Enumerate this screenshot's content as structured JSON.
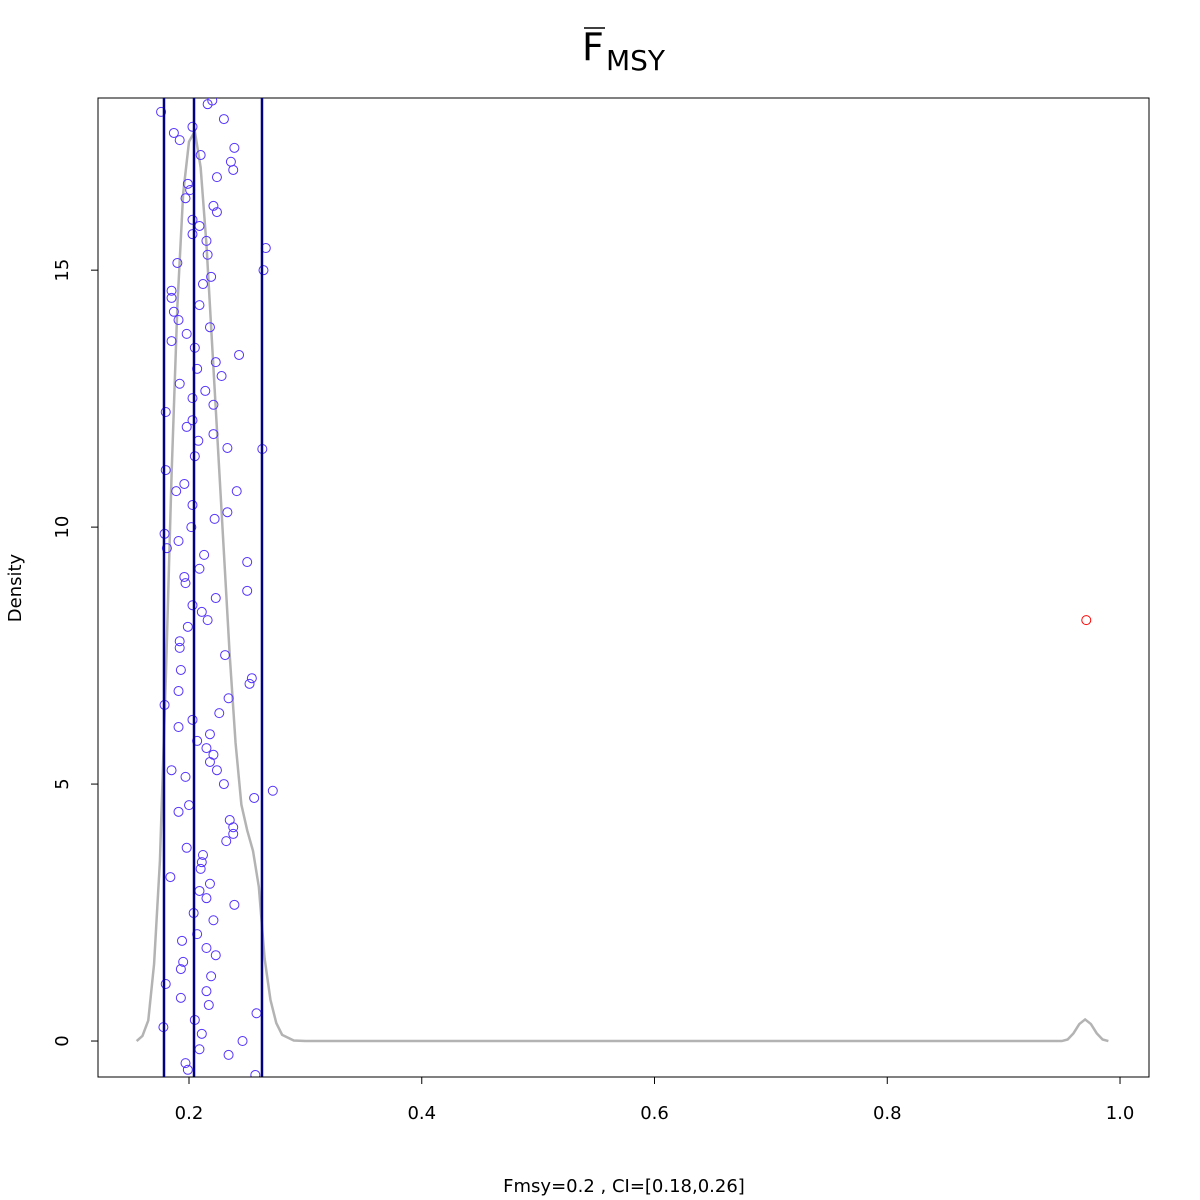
{
  "chart_data": {
    "type": "density",
    "title": {
      "text": "F",
      "subscript": "MSY"
    },
    "xlabel": "Fmsy=0.2 , CI=[0.18,0.26]",
    "ylabel": "Density",
    "xlim": [
      0.1218,
      1.0249
    ],
    "ylim": [
      -0.7,
      18.35
    ],
    "xticks": [
      0.2,
      0.4,
      0.6,
      0.8,
      {
        "value": 1,
        "label": "1.0"
      }
    ],
    "yticks": [
      0,
      5,
      10,
      15
    ],
    "vlines": {
      "color": "#000080",
      "values": [
        0.1785,
        0.2043,
        0.2627
      ]
    },
    "series": [
      {
        "type": "line",
        "color": "#b3b3b3",
        "x": [
          0.155,
          0.16,
          0.165,
          0.17,
          0.175,
          0.18,
          0.185,
          0.19,
          0.195,
          0.2,
          0.205,
          0.21,
          0.215,
          0.22,
          0.225,
          0.23,
          0.235,
          0.24,
          0.245,
          0.25,
          0.255,
          0.26,
          0.265,
          0.27,
          0.275,
          0.28,
          0.29,
          0.3,
          0.95,
          0.955,
          0.96,
          0.965,
          0.97,
          0.975,
          0.98,
          0.985,
          0.99
        ],
        "values": [
          0,
          0.1,
          0.4,
          1.5,
          3.5,
          7,
          11,
          14.3,
          16.5,
          17.5,
          17.7,
          17,
          15.5,
          13.5,
          11.5,
          9.5,
          7.5,
          5.8,
          4.6,
          4.1,
          3.7,
          3,
          1.6,
          0.8,
          0.35,
          0.12,
          0.01,
          0,
          0,
          0.03,
          0.15,
          0.33,
          0.42,
          0.33,
          0.15,
          0.03,
          0
        ]
      },
      {
        "type": "scatter",
        "color": "#5533ff",
        "x": [
          0.176,
          0.187,
          0.192,
          0.216,
          0.22,
          0.23,
          0.203,
          0.239,
          0.236,
          0.238,
          0.21,
          0.224,
          0.199,
          0.201,
          0.197,
          0.221,
          0.224,
          0.203,
          0.209,
          0.203,
          0.215,
          0.216,
          0.19,
          0.219,
          0.212,
          0.185,
          0.185,
          0.209,
          0.187,
          0.191,
          0.218,
          0.185,
          0.198,
          0.243,
          0.205,
          0.223,
          0.207,
          0.228,
          0.192,
          0.214,
          0.203,
          0.221,
          0.18,
          0.203,
          0.198,
          0.221,
          0.208,
          0.233,
          0.263,
          0.205,
          0.18,
          0.196,
          0.189,
          0.203,
          0.241,
          0.233,
          0.222,
          0.202,
          0.179,
          0.191,
          0.181,
          0.213,
          0.25,
          0.209,
          0.196,
          0.197,
          0.25,
          0.223,
          0.203,
          0.211,
          0.216,
          0.199,
          0.192,
          0.192,
          0.231,
          0.254,
          0.252,
          0.193,
          0.191,
          0.234,
          0.179,
          0.226,
          0.203,
          0.191,
          0.218,
          0.207,
          0.215,
          0.221,
          0.218,
          0.224,
          0.185,
          0.197,
          0.23,
          0.256,
          0.272,
          0.2,
          0.191,
          0.235,
          0.238,
          0.238,
          0.232,
          0.198,
          0.212,
          0.211,
          0.21,
          0.184,
          0.218,
          0.209,
          0.215,
          0.239,
          0.204,
          0.221,
          0.207,
          0.194,
          0.215,
          0.223,
          0.195,
          0.193,
          0.219,
          0.18,
          0.215,
          0.193,
          0.217,
          0.205,
          0.211,
          0.246,
          0.258,
          0.178,
          0.234,
          0.209,
          0.197,
          0.199,
          0.257,
          0.266,
          0.264
        ],
        "values": [
          18.08,
          17.67,
          17.53,
          18.23,
          18.3,
          17.94,
          17.79,
          17.38,
          17.11,
          16.95,
          17.24,
          16.81,
          16.68,
          16.56,
          16.4,
          16.25,
          16.13,
          15.98,
          15.86,
          15.7,
          15.57,
          15.3,
          15.14,
          14.87,
          14.73,
          14.6,
          14.46,
          14.32,
          14.19,
          14.03,
          13.89,
          13.62,
          13.76,
          13.35,
          13.49,
          13.21,
          13.08,
          12.94,
          12.79,
          12.65,
          12.51,
          12.38,
          12.24,
          12.08,
          11.95,
          11.81,
          11.68,
          11.54,
          11.52,
          11.38,
          11.11,
          10.84,
          10.7,
          10.43,
          10.7,
          10.29,
          10.16,
          10,
          9.87,
          9.73,
          9.59,
          9.46,
          9.32,
          9.19,
          9.03,
          8.91,
          8.76,
          8.62,
          8.48,
          8.35,
          8.19,
          8.06,
          7.78,
          7.65,
          7.51,
          7.06,
          6.95,
          7.22,
          6.81,
          6.67,
          6.54,
          6.38,
          6.25,
          6.11,
          5.97,
          5.84,
          5.7,
          5.57,
          5.43,
          5.27,
          5.27,
          5.14,
          5,
          4.73,
          4.87,
          4.59,
          4.46,
          4.3,
          4.16,
          4.03,
          3.89,
          3.76,
          3.62,
          3.48,
          3.35,
          3.19,
          3.06,
          2.92,
          2.78,
          2.65,
          2.49,
          2.35,
          2.08,
          1.95,
          1.81,
          1.67,
          1.54,
          1.4,
          1.26,
          1.11,
          0.97,
          0.84,
          0.7,
          0.41,
          0.14,
          0,
          0.54,
          0.27,
          -0.27,
          -0.16,
          -0.43,
          -0.56,
          -0.66,
          15.43,
          15
        ]
      },
      {
        "type": "scatter",
        "color": "#ff0000",
        "x": [
          0.971
        ],
        "values": [
          8.19
        ]
      }
    ]
  }
}
